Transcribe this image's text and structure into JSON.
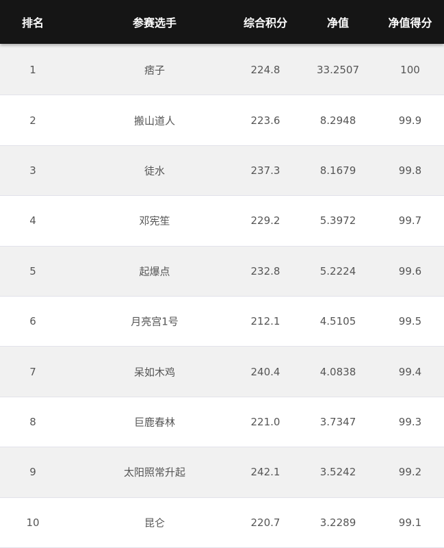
{
  "table": {
    "headers": [
      "排名",
      "参赛选手",
      "综合积分",
      "净值",
      "净值得分"
    ],
    "rows": [
      [
        "1",
        "痞子",
        "224.8",
        "33.2507",
        "100"
      ],
      [
        "2",
        "搬山道人",
        "223.6",
        "8.2948",
        "99.9"
      ],
      [
        "3",
        "徒水",
        "237.3",
        "8.1679",
        "99.8"
      ],
      [
        "4",
        "邓宪笙",
        "229.2",
        "5.3972",
        "99.7"
      ],
      [
        "5",
        "起爆点",
        "232.8",
        "5.2224",
        "99.6"
      ],
      [
        "6",
        "月亮宫1号",
        "212.1",
        "4.5105",
        "99.5"
      ],
      [
        "7",
        "呆如木鸡",
        "240.4",
        "4.0838",
        "99.4"
      ],
      [
        "8",
        "巨鹿春林",
        "221.0",
        "3.7347",
        "99.3"
      ],
      [
        "9",
        "太阳照常升起",
        "242.1",
        "3.5242",
        "99.2"
      ],
      [
        "10",
        "昆仑",
        "220.7",
        "3.2289",
        "99.1"
      ]
    ]
  },
  "colors": {
    "header_bg": "#151515",
    "row_alt_bg": "#f1f1f1",
    "text": "#555555"
  }
}
